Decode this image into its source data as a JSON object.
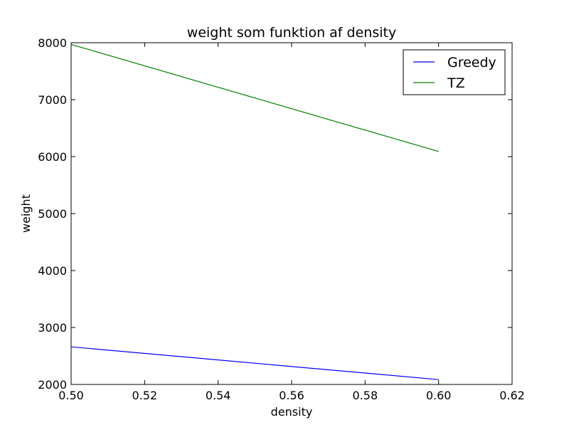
{
  "chart_data": {
    "type": "line",
    "title": "weight som funktion af density",
    "xlabel": "density",
    "ylabel": "weight",
    "xlim": [
      0.5,
      0.62
    ],
    "ylim": [
      2000,
      8000
    ],
    "x_ticks": [
      "0.50",
      "0.52",
      "0.54",
      "0.56",
      "0.58",
      "0.60",
      "0.62"
    ],
    "y_ticks": [
      "2000",
      "3000",
      "4000",
      "5000",
      "6000",
      "7000",
      "8000"
    ],
    "grid": false,
    "legend_position": "top-right",
    "series": [
      {
        "name": "Greedy",
        "color": "#0000ff",
        "x": [
          0.5,
          0.6
        ],
        "y": [
          2660,
          2085
        ]
      },
      {
        "name": "TZ",
        "color": "#008000",
        "x": [
          0.5,
          0.6
        ],
        "y": [
          7970,
          6090
        ]
      }
    ]
  }
}
